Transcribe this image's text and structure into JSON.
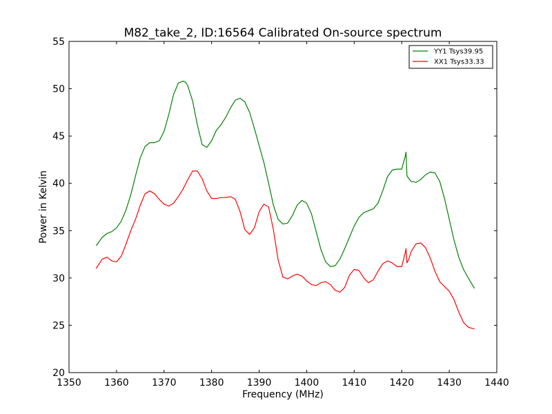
{
  "chart_data": {
    "type": "line",
    "title": "M82_take_2, ID:16564 Calibrated On-source spectrum",
    "xlabel": "Frequency (MHz)",
    "ylabel": "Power in Kelvin",
    "xlim": [
      1350,
      1440
    ],
    "ylim": [
      20,
      55
    ],
    "xticks": [
      "1350",
      "1360",
      "1370",
      "1380",
      "1390",
      "1400",
      "1410",
      "1420",
      "1430",
      "1440"
    ],
    "yticks": [
      "20",
      "25",
      "30",
      "35",
      "40",
      "45",
      "50",
      "55"
    ],
    "grid": false,
    "legend_position": "top-right",
    "series": [
      {
        "name": "YY1 Tsys39.95",
        "color": "#008000",
        "x": [
          1355.7,
          1357,
          1358,
          1359,
          1360,
          1361,
          1362,
          1363,
          1364,
          1365,
          1366,
          1367,
          1368,
          1369,
          1370,
          1371,
          1372,
          1373,
          1374,
          1374.5,
          1375,
          1376,
          1377,
          1378,
          1379,
          1380,
          1381,
          1382,
          1383,
          1384,
          1385,
          1386,
          1387,
          1388,
          1389,
          1390,
          1391,
          1392,
          1393,
          1394,
          1395,
          1396,
          1397,
          1398,
          1399,
          1400,
          1401,
          1402,
          1403,
          1404,
          1405,
          1406,
          1407,
          1408,
          1409,
          1410,
          1411,
          1412,
          1413,
          1414,
          1415,
          1416,
          1417,
          1418,
          1419,
          1420,
          1420.7,
          1420.9,
          1421.1,
          1421.5,
          1422,
          1423,
          1424,
          1425,
          1426,
          1427,
          1428,
          1429,
          1430,
          1431,
          1432,
          1433,
          1434,
          1435.3
        ],
        "y": [
          33.4,
          34.3,
          34.7,
          34.9,
          35.3,
          36.0,
          37.2,
          38.8,
          40.8,
          42.7,
          43.9,
          44.3,
          44.3,
          44.5,
          45.5,
          47.3,
          49.4,
          50.6,
          50.8,
          50.7,
          50.3,
          48.7,
          46.2,
          44.1,
          43.8,
          44.5,
          45.6,
          46.2,
          47.0,
          48.0,
          48.8,
          49.0,
          48.6,
          47.5,
          45.8,
          44.0,
          42.2,
          40.0,
          37.7,
          36.2,
          35.7,
          35.8,
          36.6,
          37.7,
          38.2,
          37.9,
          36.8,
          34.9,
          33.0,
          31.7,
          31.2,
          31.3,
          32.0,
          33.1,
          34.3,
          35.5,
          36.4,
          36.9,
          37.1,
          37.3,
          37.9,
          39.2,
          40.7,
          41.4,
          41.5,
          41.5,
          42.8,
          43.3,
          40.8,
          40.5,
          40.2,
          40.1,
          40.4,
          40.9,
          41.2,
          41.1,
          40.2,
          38.4,
          36.2,
          34.0,
          32.2,
          30.9,
          30.0,
          28.9
        ]
      },
      {
        "name": "XX1 Tsys33.33",
        "color": "#ff0000",
        "x": [
          1355.7,
          1357,
          1358,
          1359,
          1360,
          1361,
          1362,
          1363,
          1364,
          1365,
          1366,
          1367,
          1368,
          1369,
          1370,
          1371,
          1372,
          1373,
          1374,
          1375,
          1376,
          1377,
          1378,
          1379,
          1380,
          1381,
          1382,
          1383,
          1384,
          1385,
          1386,
          1387,
          1388,
          1389,
          1390,
          1391,
          1392,
          1393,
          1394,
          1395,
          1396,
          1397,
          1398,
          1399,
          1400,
          1401,
          1402,
          1403,
          1404,
          1405,
          1406,
          1407,
          1408,
          1409,
          1410,
          1411,
          1412,
          1413,
          1414,
          1415,
          1416,
          1417,
          1418,
          1419,
          1420,
          1420.7,
          1420.9,
          1421.1,
          1421.5,
          1422,
          1423,
          1424,
          1425,
          1426,
          1427,
          1428,
          1429,
          1430,
          1431,
          1432,
          1433,
          1434,
          1435.3
        ],
        "y": [
          31.0,
          32.0,
          32.2,
          31.8,
          31.7,
          32.3,
          33.6,
          35.0,
          36.2,
          37.7,
          38.9,
          39.2,
          38.9,
          38.3,
          37.8,
          37.6,
          37.9,
          38.6,
          39.4,
          40.4,
          41.3,
          41.3,
          40.5,
          39.2,
          38.4,
          38.4,
          38.5,
          38.5,
          38.6,
          38.3,
          37.0,
          35.1,
          34.6,
          35.3,
          37.0,
          37.8,
          37.5,
          35.1,
          31.9,
          30.1,
          29.9,
          30.2,
          30.4,
          30.2,
          29.7,
          29.3,
          29.2,
          29.5,
          29.6,
          29.3,
          28.7,
          28.5,
          29.0,
          30.3,
          30.9,
          30.8,
          30.0,
          29.5,
          29.8,
          30.7,
          31.5,
          31.8,
          31.6,
          31.2,
          31.2,
          32.6,
          33.1,
          31.6,
          32.0,
          32.8,
          33.6,
          33.7,
          33.2,
          32.1,
          30.7,
          29.6,
          29.1,
          28.6,
          27.7,
          26.4,
          25.3,
          24.8,
          24.6
        ]
      }
    ]
  }
}
